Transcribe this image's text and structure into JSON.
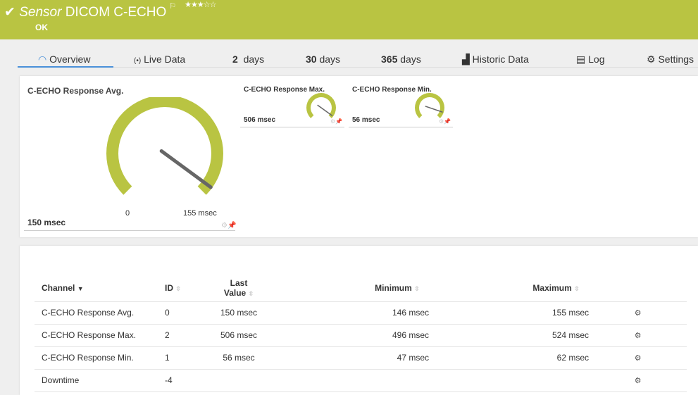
{
  "header": {
    "type": "Sensor",
    "name": "DICOM C-ECHO",
    "status": "OK",
    "priority_stars": 3,
    "stars_text": "★★★☆☆",
    "color": "#b9c442"
  },
  "tabs": [
    {
      "label": "Overview",
      "icon": "gauge-icon",
      "active": true
    },
    {
      "label": "Live Data",
      "icon": "broadcast-icon"
    },
    {
      "num": "2",
      "label": "days"
    },
    {
      "num": "30",
      "label": "days"
    },
    {
      "num": "365",
      "label": "days"
    },
    {
      "label": "Historic Data",
      "icon": "chart-icon"
    },
    {
      "label": "Log",
      "icon": "list-icon"
    },
    {
      "label": "Settings",
      "icon": "gear-icon"
    }
  ],
  "gauges": {
    "avg": {
      "title": "C-ECHO Response Avg.",
      "value_label": "150 msec",
      "min_label": "0",
      "max_label": "155 msec",
      "value": 150,
      "max": 155
    },
    "max": {
      "title": "C-ECHO Response Max.",
      "value_label": "506 msec",
      "value": 506,
      "max": 524
    },
    "min": {
      "title": "C-ECHO Response Min.",
      "value_label": "56 msec",
      "value": 56,
      "max": 62
    }
  },
  "table": {
    "headers": [
      "Channel",
      "ID",
      "Last",
      "Value",
      "Minimum",
      "Maximum"
    ],
    "rows": [
      {
        "channel": "C-ECHO Response Avg.",
        "id": "0",
        "last": "150 msec",
        "min": "146 msec",
        "max": "155 msec"
      },
      {
        "channel": "C-ECHO Response Max.",
        "id": "2",
        "last": "506 msec",
        "min": "496 msec",
        "max": "524 msec"
      },
      {
        "channel": "C-ECHO Response Min.",
        "id": "1",
        "last": "56 msec",
        "min": "47 msec",
        "max": "62 msec"
      },
      {
        "channel": "Downtime",
        "id": "-4",
        "last": "",
        "min": "",
        "max": ""
      }
    ]
  }
}
